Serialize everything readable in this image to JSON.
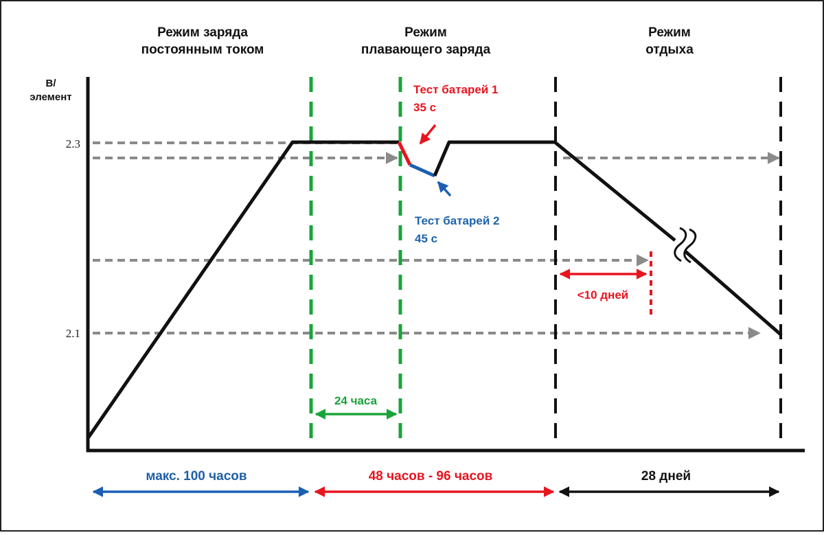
{
  "headers": {
    "constant_current": [
      "Режим заряда",
      "постоянным током"
    ],
    "float": [
      "Режим",
      "плавающего заряда"
    ],
    "rest": [
      "Режим",
      "отдыха"
    ]
  },
  "y_axis": {
    "label": [
      "В/",
      "элемент"
    ],
    "ticks": [
      "2.3",
      "2.1"
    ]
  },
  "annotations": {
    "test1": [
      "Тест батарей 1",
      "35 с"
    ],
    "test2": [
      "Тест батарей 2",
      "45 с"
    ],
    "rest_limit": "<10 дней",
    "interval": "24 часа"
  },
  "durations": {
    "constant_current": "макс. 100 часов",
    "float": "48 часов - 96 часов",
    "rest": "28 дней"
  },
  "colors": {
    "line": "#111111",
    "green": "#1aa33a",
    "red": "#e8141e",
    "blue": "#1a5fb4",
    "gray": "#8a8a8a",
    "test2_text": "#1e63ad",
    "duration_blue": "#1e5fa8"
  }
}
